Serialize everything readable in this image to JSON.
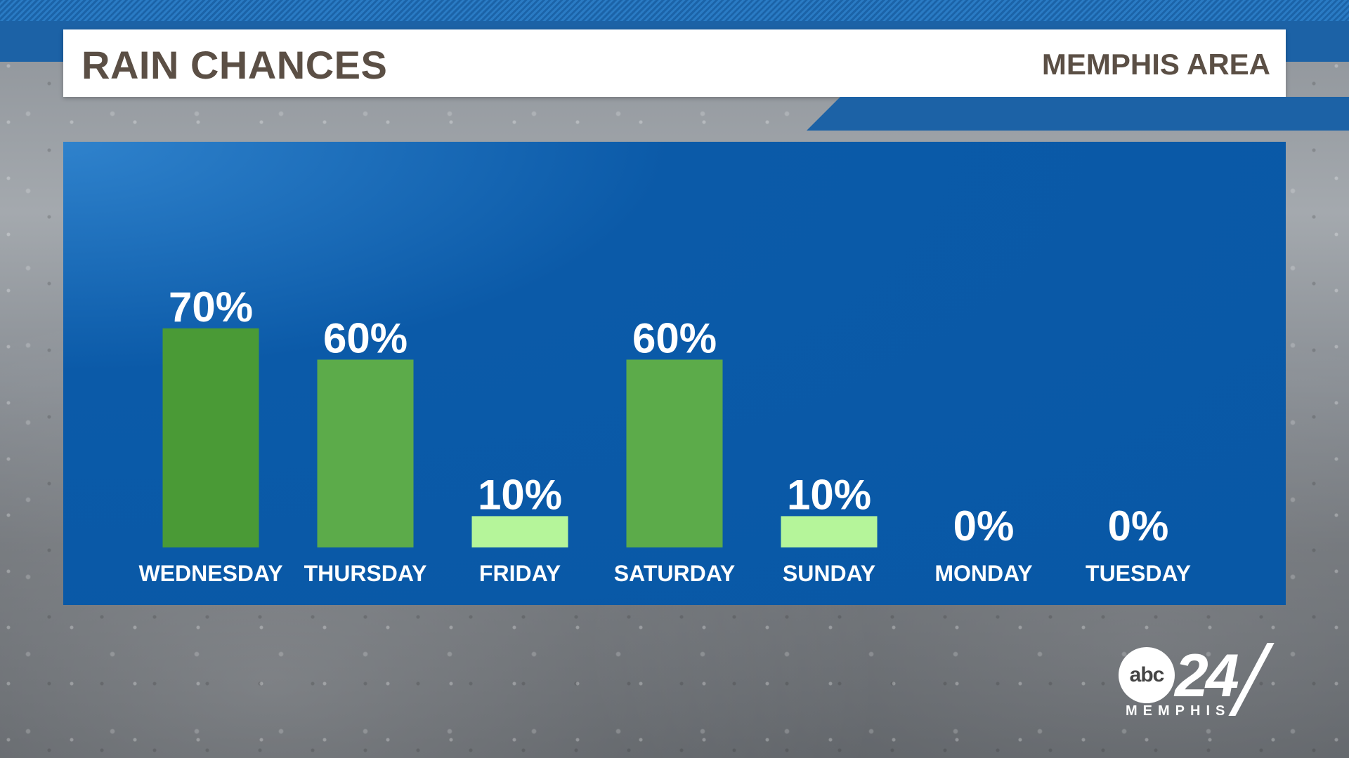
{
  "header": {
    "title": "RAIN CHANCES",
    "region": "MEMPHIS AREA"
  },
  "chart_data": {
    "type": "bar",
    "title": "RAIN CHANCES",
    "categories": [
      "WEDNESDAY",
      "THURSDAY",
      "FRIDAY",
      "SATURDAY",
      "SUNDAY",
      "MONDAY",
      "TUESDAY"
    ],
    "values": [
      70,
      60,
      10,
      60,
      10,
      0,
      0
    ],
    "value_labels": [
      "70%",
      "60%",
      "10%",
      "60%",
      "10%",
      "0%",
      "0%"
    ],
    "bar_colors": [
      "#4a9a36",
      "#5cab4a",
      "#b5f59a",
      "#5cab4a",
      "#b5f59a",
      "#5cab4a",
      "#5cab4a"
    ],
    "ylim": [
      0,
      100
    ],
    "grid": false,
    "xlabel": "",
    "ylabel": ""
  },
  "logo": {
    "network": "abc",
    "channel": "24",
    "city": "MEMPHIS"
  }
}
